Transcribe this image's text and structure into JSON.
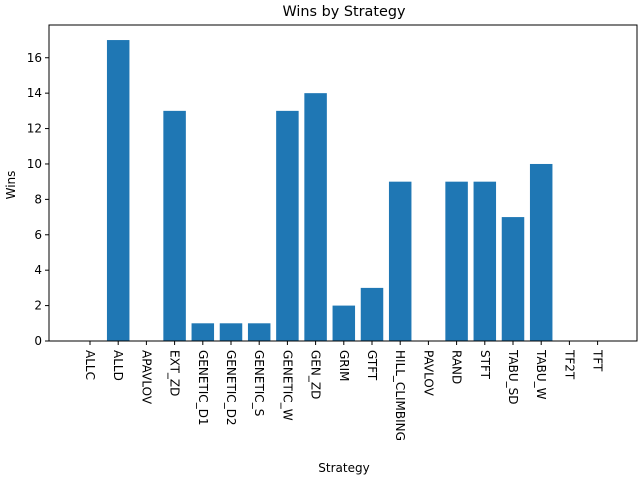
{
  "chart_data": {
    "type": "bar",
    "title": "Wins by Strategy",
    "xlabel": "Strategy",
    "ylabel": "Wins",
    "categories": [
      "ALLC",
      "ALLD",
      "APAVLOV",
      "EXT_ZD",
      "GENETIC_D1",
      "GENETIC_D2",
      "GENETIC_S",
      "GENETIC_W",
      "GEN_ZD",
      "GRIM",
      "GTFT",
      "HILL_CLIMBING",
      "PAVLOV",
      "RAND",
      "STFT",
      "TABU_SD",
      "TABU_W",
      "TF2T",
      "TFT"
    ],
    "values": [
      0,
      17,
      0,
      13,
      1,
      1,
      1,
      13,
      14,
      2,
      3,
      9,
      0,
      9,
      9,
      7,
      10,
      0,
      0
    ],
    "ylim": [
      0,
      17.85
    ],
    "yticks": [
      0,
      2,
      4,
      6,
      8,
      10,
      12,
      14,
      16
    ],
    "bar_color": "#1f77b4",
    "grid": false,
    "x_tick_rotation": "vertical"
  }
}
